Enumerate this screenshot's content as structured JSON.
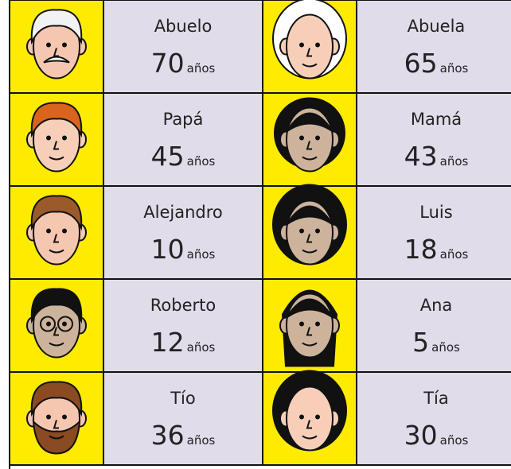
{
  "unit": "años",
  "people": [
    {
      "name": "Abuelo",
      "age": 70
    },
    {
      "name": "Abuela",
      "age": 65
    },
    {
      "name": "Papá",
      "age": 45
    },
    {
      "name": "Mamá",
      "age": 43
    },
    {
      "name": "Alejandro",
      "age": 10
    },
    {
      "name": "Luis",
      "age": 18
    },
    {
      "name": "Roberto",
      "age": 12
    },
    {
      "name": "Ana",
      "age": 5
    },
    {
      "name": "Tío",
      "age": 36
    },
    {
      "name": "Tía",
      "age": 30
    }
  ]
}
